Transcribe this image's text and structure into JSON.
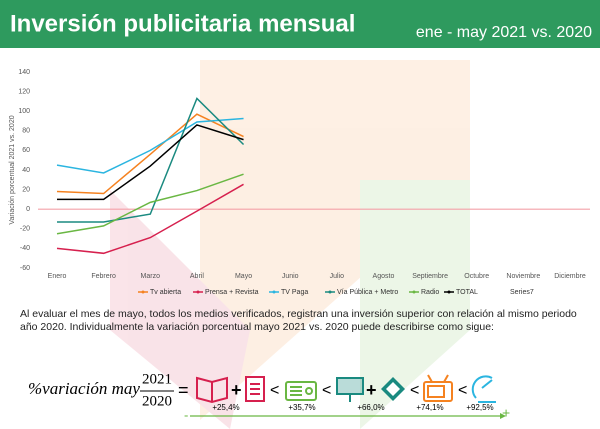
{
  "header": {
    "title": "Inversión publicitaria mensual",
    "period": "ene - may 2021 vs. 2020"
  },
  "chart_data": {
    "type": "line",
    "y_label": "Variación porcentual 2021 vs. 2020",
    "categories": [
      "Enero",
      "Febrero",
      "Marzo",
      "Abril",
      "Mayo",
      "Junio",
      "Julio",
      "Agosto",
      "Septiembre",
      "Octubre",
      "Noviembre",
      "Diciembre"
    ],
    "series": [
      {
        "name": "Tv abierta",
        "color": "#f58220",
        "values": [
          18,
          16,
          56,
          97,
          74.1,
          null,
          null,
          null,
          null,
          null,
          null,
          null
        ]
      },
      {
        "name": "Prensa + Revista",
        "color": "#d6204e",
        "values": [
          -40,
          -45,
          -29,
          -2,
          25.4,
          null,
          null,
          null,
          null,
          null,
          null,
          null
        ]
      },
      {
        "name": "TV Paga",
        "color": "#2bb5e0",
        "values": [
          45,
          37,
          60,
          89,
          92.5,
          null,
          null,
          null,
          null,
          null,
          null,
          null
        ]
      },
      {
        "name": "Vía Pública + Metro",
        "color": "#1a8a80",
        "values": [
          -13,
          -13,
          -5,
          113,
          66,
          null,
          null,
          null,
          null,
          null,
          null,
          null
        ]
      },
      {
        "name": "Radio",
        "color": "#6ab743",
        "values": [
          -25,
          -17,
          7,
          19,
          35.7,
          null,
          null,
          null,
          null,
          null,
          null,
          null
        ]
      },
      {
        "name": "TOTAL",
        "color": "#000000",
        "values": [
          10,
          10,
          44,
          86,
          71,
          null,
          null,
          null,
          null,
          null,
          null,
          null
        ]
      },
      {
        "name": "Series7",
        "values": [
          null,
          null,
          null,
          null,
          null,
          null,
          null,
          null,
          null,
          null,
          null,
          null
        ]
      }
    ],
    "ylim": [
      -60,
      140
    ],
    "yticks": [
      -60,
      -40,
      -20,
      0,
      20,
      40,
      60,
      80,
      100,
      120,
      140
    ],
    "grid": false
  },
  "text": "Al evaluar el mes de mayo, todos los medios verificados, registran una inversión superior con relación al mismo periodo año 2020. Individualmente la variación porcentual mayo 2021 vs. 2020 puede describirse como sigue:",
  "formula": {
    "lhs": "%variación may",
    "numerator": "2021",
    "denominator": "2020",
    "labels": [
      "+25,4%",
      "+35,7%",
      "+66,0%",
      "+74,1%",
      "+92,5%"
    ],
    "minus": "-",
    "plus": "+"
  }
}
